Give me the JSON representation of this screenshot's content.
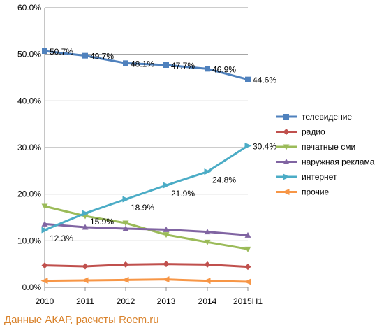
{
  "source_note": "Данные АКАР, расчеты Roem.ru",
  "chart_data": {
    "type": "line",
    "categories": [
      "2010",
      "2011",
      "2012",
      "2013",
      "2014",
      "2015H1"
    ],
    "ylim": [
      0,
      60
    ],
    "ytick_labels": [
      "0.0%",
      "10.0%",
      "20.0%",
      "30.0%",
      "40.0%",
      "50.0%",
      "60.0%"
    ],
    "grid": "horizontal",
    "legend_position": "right",
    "series": [
      {
        "name": "телевидение",
        "color": "#4f81bd",
        "marker": "square",
        "values": [
          50.7,
          49.7,
          48.1,
          47.7,
          46.9,
          44.6
        ],
        "labels": [
          "50.7%",
          "49.7%",
          "48.1%",
          "47.7%",
          "46.9%",
          "44.6%"
        ]
      },
      {
        "name": "радио",
        "color": "#c0504d",
        "marker": "diamond",
        "values": [
          4.7,
          4.5,
          4.9,
          5.0,
          4.9,
          4.4
        ],
        "labels": []
      },
      {
        "name": "печатные сми",
        "color": "#9bbb59",
        "marker": "triangle-down",
        "values": [
          17.4,
          15.3,
          13.8,
          11.3,
          9.7,
          8.2
        ],
        "labels": []
      },
      {
        "name": "наружная реклама",
        "color": "#8064a2",
        "marker": "triangle-up",
        "values": [
          13.6,
          12.9,
          12.6,
          12.4,
          11.9,
          11.2
        ],
        "labels": []
      },
      {
        "name": "интернет",
        "color": "#4bacc6",
        "marker": "arrow-right",
        "values": [
          12.3,
          15.9,
          18.9,
          21.9,
          24.8,
          30.4
        ],
        "labels": [
          "12.3%",
          "15.9%",
          "18.9%",
          "21.9%",
          "24.8%",
          "30.4%"
        ]
      },
      {
        "name": "прочие",
        "color": "#f79646",
        "marker": "arrow-left",
        "values": [
          1.4,
          1.5,
          1.6,
          1.7,
          1.4,
          1.2
        ],
        "labels": []
      }
    ]
  }
}
